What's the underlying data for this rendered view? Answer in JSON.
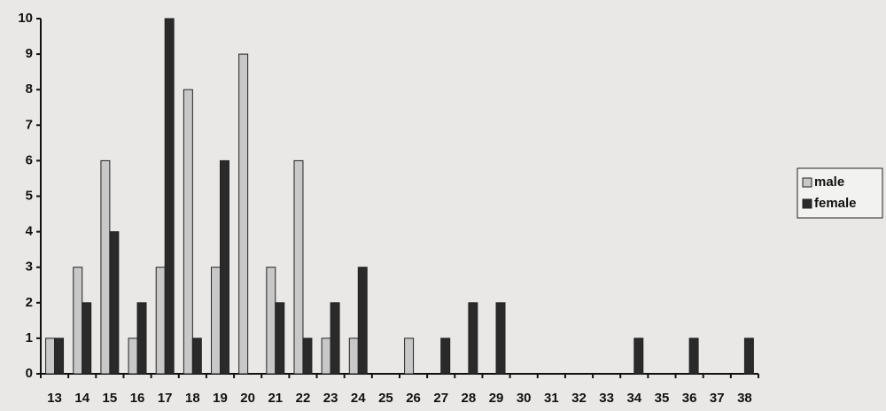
{
  "chart_data": {
    "type": "bar",
    "categories": [
      "13",
      "14",
      "15",
      "16",
      "17",
      "18",
      "19",
      "20",
      "21",
      "22",
      "23",
      "24",
      "25",
      "26",
      "27",
      "28",
      "29",
      "30",
      "31",
      "32",
      "33",
      "34",
      "35",
      "36",
      "37",
      "38"
    ],
    "series": [
      {
        "name": "male",
        "color": "#c8c8c8",
        "values": [
          1,
          3,
          6,
          1,
          3,
          8,
          3,
          9,
          3,
          6,
          1,
          1,
          0,
          1,
          0,
          0,
          0,
          0,
          0,
          0,
          0,
          0,
          0,
          0,
          0,
          0
        ]
      },
      {
        "name": "female",
        "color": "#2a2a2a",
        "values": [
          1,
          2,
          4,
          2,
          10,
          1,
          6,
          0,
          2,
          1,
          2,
          3,
          0,
          0,
          1,
          2,
          2,
          0,
          0,
          0,
          0,
          1,
          0,
          1,
          0,
          1
        ]
      }
    ],
    "ylim": [
      0,
      10
    ],
    "yticks": [
      0,
      1,
      2,
      3,
      4,
      5,
      6,
      7,
      8,
      9,
      10
    ],
    "legend": "right"
  }
}
